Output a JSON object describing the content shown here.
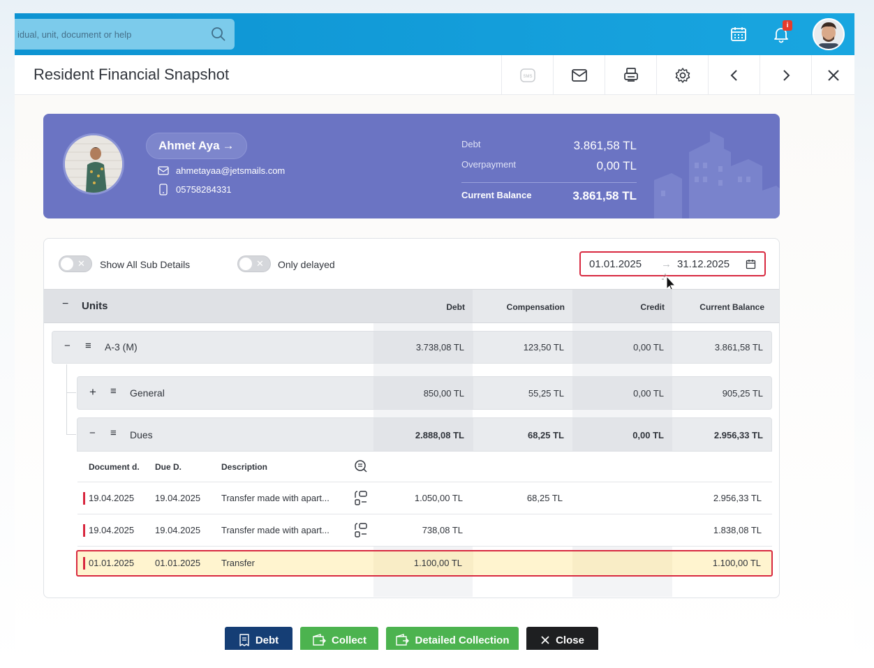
{
  "search": {
    "placeholder": "idual, unit, document or help"
  },
  "notifications": {
    "badge": "i"
  },
  "page": {
    "title": "Resident Financial Snapshot"
  },
  "toolbar": {
    "sms_label": "SMS"
  },
  "profile": {
    "name": "Ahmet Aya",
    "email": "ahmetayaa@jetsmails.com",
    "phone": "05758284331",
    "debt_label": "Debt",
    "debt_value": "3.861,58 TL",
    "overpayment_label": "Overpayment",
    "overpayment_value": "0,00 TL",
    "balance_label": "Current Balance",
    "balance_value": "3.861,58 TL"
  },
  "filters": {
    "show_all_label": "Show All Sub Details",
    "only_delayed_label": "Only delayed",
    "date_from": "01.01.2025",
    "date_to": "31.12.2025"
  },
  "grid": {
    "units_label": "Units",
    "columns": {
      "debt": "Debt",
      "compensation": "Compensation",
      "credit": "Credit",
      "balance": "Current Balance"
    },
    "unit": {
      "name": "A-3 (M)",
      "debt": "3.738,08 TL",
      "compensation": "123,50 TL",
      "credit": "0,00 TL",
      "balance": "3.861,58 TL"
    },
    "general": {
      "name": "General",
      "debt": "850,00 TL",
      "compensation": "55,25 TL",
      "credit": "0,00 TL",
      "balance": "905,25 TL"
    },
    "dues": {
      "name": "Dues",
      "debt": "2.888,08 TL",
      "compensation": "68,25 TL",
      "credit": "0,00 TL",
      "balance": "2.956,33 TL"
    },
    "detail_headers": {
      "doc": "Document d.",
      "due": "Due D.",
      "desc": "Description"
    },
    "rows": [
      {
        "doc": "19.04.2025",
        "due": "19.04.2025",
        "desc": "Transfer made with apart...",
        "debt": "1.050,00 TL",
        "compensation": "68,25 TL",
        "credit": "",
        "balance": "2.956,33 TL"
      },
      {
        "doc": "19.04.2025",
        "due": "19.04.2025",
        "desc": "Transfer made with apart...",
        "debt": "738,08 TL",
        "compensation": "",
        "credit": "",
        "balance": "1.838,08 TL"
      },
      {
        "doc": "01.01.2025",
        "due": "01.01.2025",
        "desc": "Transfer",
        "debt": "1.100,00 TL",
        "compensation": "",
        "credit": "",
        "balance": "1.100,00 TL"
      }
    ]
  },
  "actions": {
    "debt": "Debt",
    "collect": "Collect",
    "detailed": "Detailed Collection",
    "close": "Close"
  },
  "colors": {
    "topbar": "#1199d6",
    "profile_card": "#6b74c3",
    "debt_button": "#153e75",
    "collect_button": "#4cb34f",
    "close_button": "#1e1f21",
    "highlight_row": "#fff4cf",
    "alert_red": "#d8283f"
  }
}
